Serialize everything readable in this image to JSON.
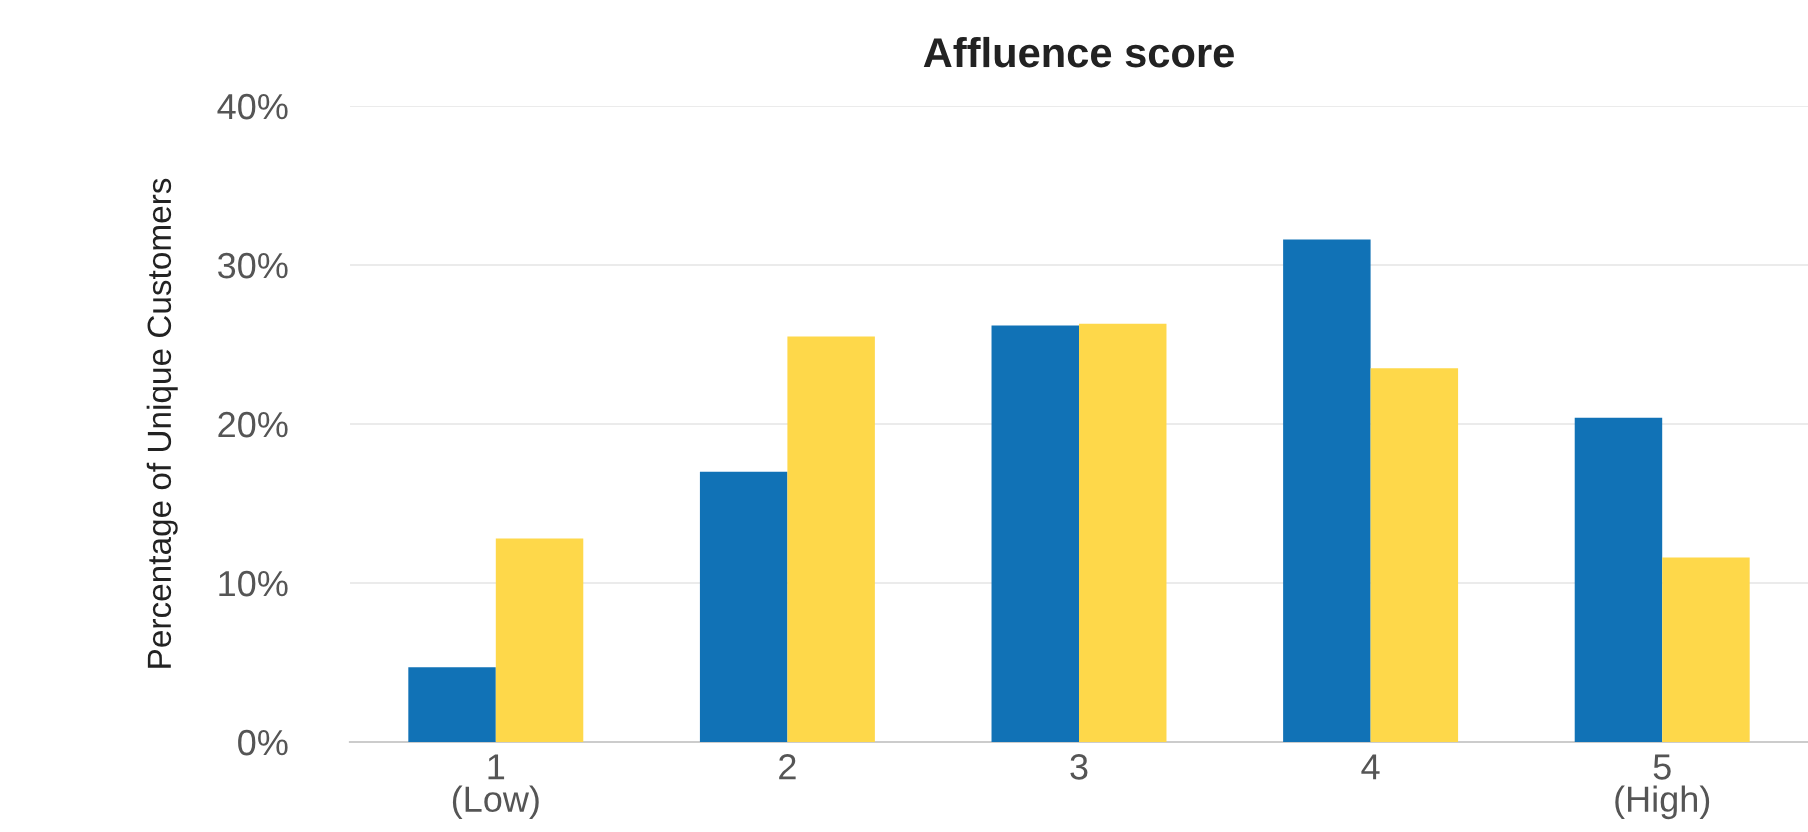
{
  "chart_data": {
    "type": "bar",
    "title": "Affluence score",
    "ylabel": "Percentage of Unique Customers",
    "categories": [
      "1\n(Low)",
      "2",
      "3",
      "4",
      "5\n(High)"
    ],
    "series": [
      {
        "color": "#1172b6",
        "values": [
          4.7,
          17.0,
          26.2,
          31.6,
          20.4
        ]
      },
      {
        "color": "#fed84a",
        "values": [
          12.8,
          25.5,
          26.3,
          23.5,
          11.6
        ]
      }
    ],
    "ylim": [
      0,
      40
    ],
    "yticks": [
      {
        "value": 0,
        "label": "0%"
      },
      {
        "value": 10,
        "label": "10%"
      },
      {
        "value": 20,
        "label": "20%"
      },
      {
        "value": 30,
        "label": "30%"
      },
      {
        "value": 40,
        "label": "40%"
      }
    ],
    "grid": "y"
  }
}
